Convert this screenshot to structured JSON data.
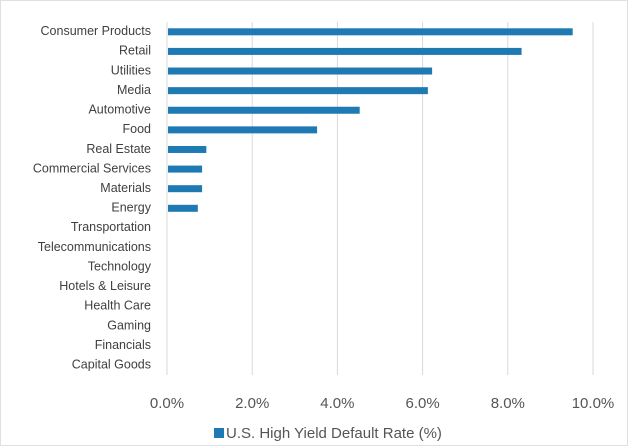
{
  "chart_data": {
    "type": "hbar",
    "categories": [
      "Consumer Products",
      "Retail",
      "Utilities",
      "Media",
      "Automotive",
      "Food",
      "Real Estate",
      "Commercial Services",
      "Materials",
      "Energy",
      "Transportation",
      "Telecommunications",
      "Technology",
      "Hotels & Leisure",
      "Health Care",
      "Gaming",
      "Financials",
      "Capital Goods"
    ],
    "series": [
      {
        "name": "U.S. High Yield Default Rate (%)",
        "color": "#1f7ab4",
        "values": [
          9.5,
          8.3,
          6.2,
          6.1,
          4.5,
          3.5,
          0.9,
          0.8,
          0.8,
          0.7,
          0,
          0,
          0,
          0,
          0,
          0,
          0,
          0
        ]
      }
    ],
    "xlim": [
      0,
      10
    ],
    "xticks": [
      {
        "value": 0,
        "label": "0.0%"
      },
      {
        "value": 2,
        "label": "2.0%"
      },
      {
        "value": 4,
        "label": "4.0%"
      },
      {
        "value": 6,
        "label": "6.0%"
      },
      {
        "value": 8,
        "label": "8.0%"
      },
      {
        "value": 10,
        "label": "10.0%"
      }
    ],
    "grid": true,
    "legend": "bottom"
  }
}
